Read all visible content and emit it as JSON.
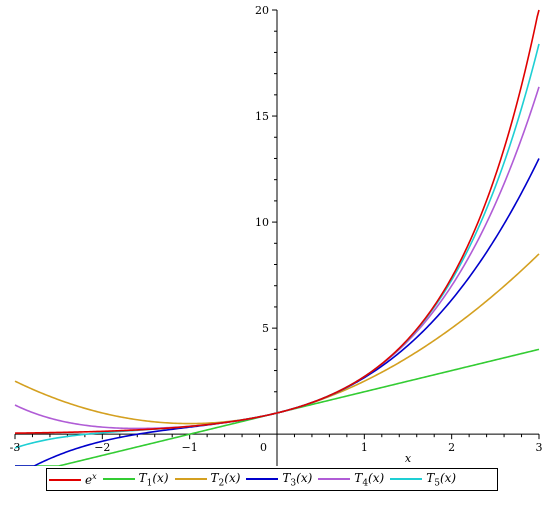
{
  "chart_data": {
    "type": "line",
    "xlabel": "x",
    "ylabel": "",
    "xlim": [
      -3,
      3
    ],
    "ylim": [
      -1.5,
      20
    ],
    "x_ticks": [
      -3,
      -2,
      -1,
      0,
      1,
      2,
      3
    ],
    "x_tick_labels": [
      "-3",
      "−2",
      "−1",
      "0",
      "1",
      "2",
      "3"
    ],
    "y_ticks": [
      5,
      10,
      15,
      20
    ],
    "y_tick_labels": [
      "5",
      "10",
      "15",
      "20"
    ],
    "grid": false,
    "legend_position": "bottom",
    "series": [
      {
        "name": "e^x",
        "color": "#e00000",
        "fn": "exp",
        "x": [
          -3,
          -2.5,
          -2,
          -1.5,
          -1,
          -0.5,
          0,
          0.5,
          1,
          1.5,
          2,
          2.5,
          3
        ],
        "values": [
          0.05,
          0.08,
          0.14,
          0.22,
          0.37,
          0.61,
          1,
          1.65,
          2.72,
          4.48,
          7.39,
          12.18,
          20.09
        ]
      },
      {
        "name": "T_1(x)",
        "color": "#33cc33",
        "fn": "t1",
        "x": [
          -3,
          -2,
          -1,
          0,
          1,
          2,
          3
        ],
        "values": [
          -2,
          -1,
          0,
          1,
          2,
          3,
          4
        ]
      },
      {
        "name": "T_2(x)",
        "color": "#d4a020",
        "fn": "t2",
        "x": [
          -3,
          -2,
          -1,
          0,
          1,
          2,
          3
        ],
        "values": [
          2.5,
          1,
          0.5,
          1,
          2.5,
          5,
          8.5
        ]
      },
      {
        "name": "T_3(x)",
        "color": "#0000cc",
        "fn": "t3",
        "x": [
          -3,
          -2,
          -1,
          0,
          1,
          2,
          3
        ],
        "values": [
          -2,
          -0.33,
          0.33,
          1,
          2.67,
          6.33,
          13
        ]
      },
      {
        "name": "T_4(x)",
        "color": "#b05cd6",
        "fn": "t4",
        "x": [
          -3,
          -2,
          -1,
          0,
          1,
          2,
          3
        ],
        "values": [
          1.38,
          0.33,
          0.38,
          1,
          2.71,
          7,
          16.38
        ]
      },
      {
        "name": "T_5(x)",
        "color": "#1ecfd4",
        "fn": "t5",
        "x": [
          -3,
          -2,
          -1,
          0,
          1,
          2,
          3
        ],
        "values": [
          -0.65,
          0.07,
          0.37,
          1,
          2.72,
          7.27,
          18.4
        ]
      }
    ],
    "legend_entries": [
      {
        "base": "e",
        "sup": "x",
        "sub": "",
        "tail": "",
        "color": "#e00000"
      },
      {
        "base": "T",
        "sup": "",
        "sub": "1",
        "tail": "(x)",
        "color": "#33cc33"
      },
      {
        "base": "T",
        "sup": "",
        "sub": "2",
        "tail": "(x)",
        "color": "#d4a020"
      },
      {
        "base": "T",
        "sup": "",
        "sub": "3",
        "tail": "(x)",
        "color": "#0000cc"
      },
      {
        "base": "T",
        "sup": "",
        "sub": "4",
        "tail": "(x)",
        "color": "#b05cd6"
      },
      {
        "base": "T",
        "sup": "",
        "sub": "5",
        "tail": "(x)",
        "color": "#1ecfd4"
      }
    ]
  }
}
